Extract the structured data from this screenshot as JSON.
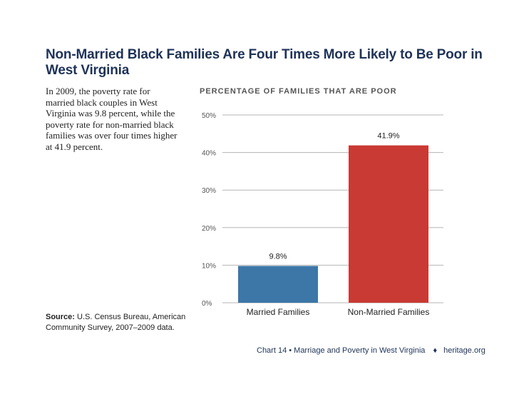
{
  "header": {
    "title": "Non-Married Black Families Are Four Times More Likely to Be Poor in West Virginia"
  },
  "description": "In 2009, the poverty rate for married black couples in West Virginia was 9.8 percent, while the poverty rate for non-married black families was over four times higher at 41.9 percent.",
  "source": {
    "label": "Source:",
    "text": "U.S. Census Bureau, American Community Survey, 2007–2009 data."
  },
  "footer": {
    "chart_caption": "Chart 14 • Marriage and Poverty in West Virginia",
    "logo_icon": "liberty-bell-icon",
    "site": "heritage.org"
  },
  "colors": {
    "title": "#1f3358",
    "married_bar": "#3c77a8",
    "nonmarried_bar": "#c93a34",
    "grid": "#b5b5b5"
  },
  "chart_data": {
    "type": "bar",
    "title": "PERCENTAGE OF FAMILIES THAT ARE POOR",
    "categories": [
      "Married Families",
      "Non-Married Families"
    ],
    "values": [
      9.8,
      41.9
    ],
    "value_labels": [
      "9.8%",
      "41.9%"
    ],
    "yticks": [
      "0%",
      "10%",
      "20%",
      "30%",
      "40%",
      "50%"
    ],
    "ylim": [
      0,
      50
    ],
    "grid": true
  }
}
